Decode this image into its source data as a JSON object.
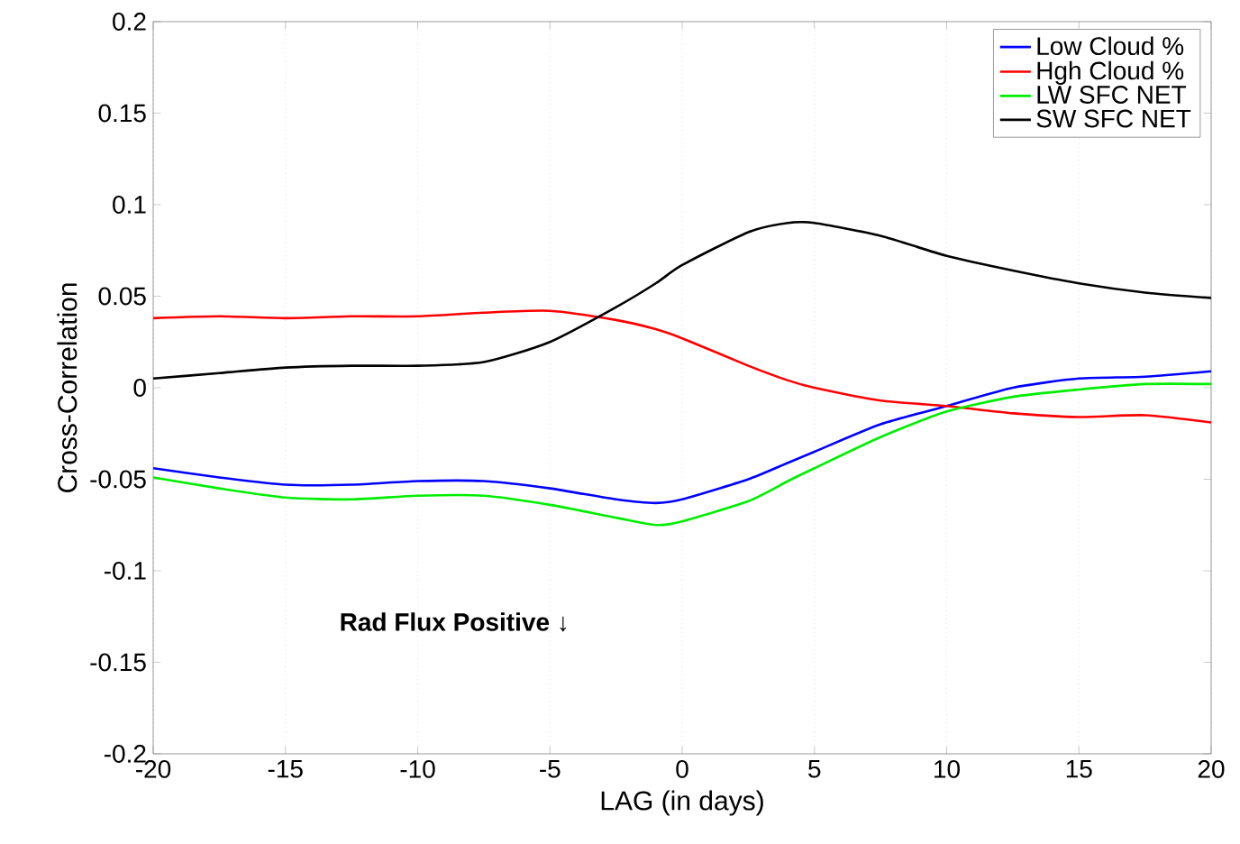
{
  "chart_data": {
    "type": "line",
    "xlabel": "LAG (in days)",
    "ylabel": "Cross-Correlation",
    "x": [
      -20,
      -17.5,
      -15,
      -12.5,
      -10,
      -7.5,
      -5,
      -2.5,
      -1,
      0,
      2.5,
      4,
      5,
      7.5,
      10,
      12.5,
      15,
      17.5,
      20
    ],
    "series": [
      {
        "name": "Low Cloud %",
        "color": "#0000ff",
        "values": [
          -0.044,
          -0.049,
          -0.053,
          -0.053,
          -0.051,
          -0.051,
          -0.055,
          -0.061,
          -0.063,
          -0.061,
          -0.05,
          -0.041,
          -0.035,
          -0.02,
          -0.01,
          0.0,
          0.005,
          0.006,
          0.009
        ]
      },
      {
        "name": "Hgh Cloud %",
        "color": "#ff0000",
        "values": [
          0.038,
          0.039,
          0.038,
          0.039,
          0.039,
          0.041,
          0.042,
          0.037,
          0.032,
          0.027,
          0.012,
          0.004,
          0.0,
          -0.007,
          -0.01,
          -0.014,
          -0.016,
          -0.015,
          -0.019
        ]
      },
      {
        "name": "LW SFC NET",
        "color": "#00ee00",
        "values": [
          -0.049,
          -0.055,
          -0.06,
          -0.061,
          -0.059,
          -0.059,
          -0.064,
          -0.071,
          -0.075,
          -0.073,
          -0.062,
          -0.051,
          -0.044,
          -0.027,
          -0.013,
          -0.005,
          -0.001,
          0.002,
          0.002
        ]
      },
      {
        "name": "SW SFC NET",
        "color": "#000000",
        "values": [
          0.005,
          0.008,
          0.011,
          0.012,
          0.012,
          0.014,
          0.025,
          0.044,
          0.057,
          0.067,
          0.085,
          0.09,
          0.09,
          0.083,
          0.072,
          0.064,
          0.057,
          0.052,
          0.049
        ]
      }
    ],
    "xlim": [
      -20,
      20
    ],
    "ylim": [
      -0.2,
      0.2
    ],
    "xticks": [
      -20,
      -15,
      -10,
      -5,
      0,
      5,
      10,
      15,
      20
    ],
    "yticks": [
      -0.2,
      -0.15,
      -0.1,
      -0.05,
      0,
      0.05,
      0.1,
      0.15,
      0.2
    ],
    "grid": "x",
    "legend": "top right",
    "marker": "none",
    "line_style": "solid",
    "annotations": [
      "Rad Flux Positive ↓"
    ]
  }
}
